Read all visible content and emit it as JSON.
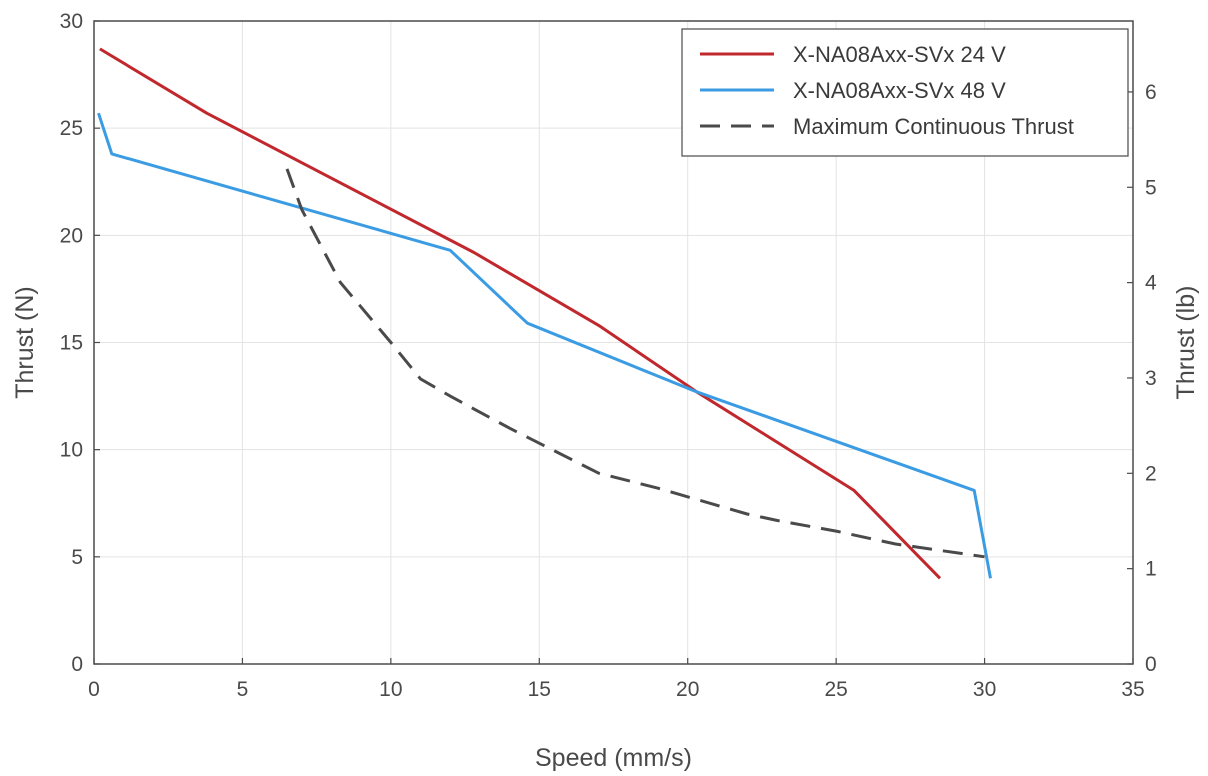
{
  "chart_data": {
    "type": "line",
    "xlabel": "Speed (mm/s)",
    "ylabel": "Thrust (N)",
    "y2label": "Thrust (lb)",
    "xlim": [
      0,
      35
    ],
    "ylim": [
      0,
      30
    ],
    "y2lim": [
      0,
      6.744
    ],
    "xticks": [
      0,
      5,
      10,
      15,
      20,
      25,
      30,
      35
    ],
    "yticks": [
      0,
      5,
      10,
      15,
      20,
      25,
      30
    ],
    "y2ticks": [
      0,
      1,
      2,
      3,
      4,
      5,
      6
    ],
    "grid": true,
    "legend_position": "top-right",
    "series": [
      {
        "name": "X-NA08Axx-SVx 24 V",
        "color": "#c0282d",
        "dash": "solid",
        "x": [
          0.2,
          3.8,
          12.8,
          17.0,
          20.3,
          25.6,
          28.5
        ],
        "y": [
          28.7,
          25.7,
          19.2,
          15.8,
          12.7,
          8.1,
          4.0
        ]
      },
      {
        "name": "X-NA08Axx-SVx 48 V",
        "color": "#3b9ce3",
        "dash": "solid",
        "x": [
          0.15,
          0.6,
          12.0,
          14.6,
          20.3,
          29.65,
          30.2
        ],
        "y": [
          25.7,
          23.8,
          19.3,
          15.9,
          12.7,
          8.1,
          4.0
        ]
      },
      {
        "name": "Maximum Continuous Thrust",
        "color": "#4a4a4a",
        "dash": "dashed",
        "x": [
          6.5,
          7.0,
          8.3,
          10.0,
          11.0,
          12.0,
          14.0,
          16.0,
          17.0,
          19.0,
          21.0,
          22.0,
          23.0,
          25.0,
          27.0,
          30.0
        ],
        "y": [
          23.1,
          21.2,
          17.8,
          15.0,
          13.3,
          12.5,
          11.0,
          9.6,
          8.9,
          8.2,
          7.4,
          7.0,
          6.7,
          6.2,
          5.6,
          5.0
        ]
      }
    ]
  }
}
